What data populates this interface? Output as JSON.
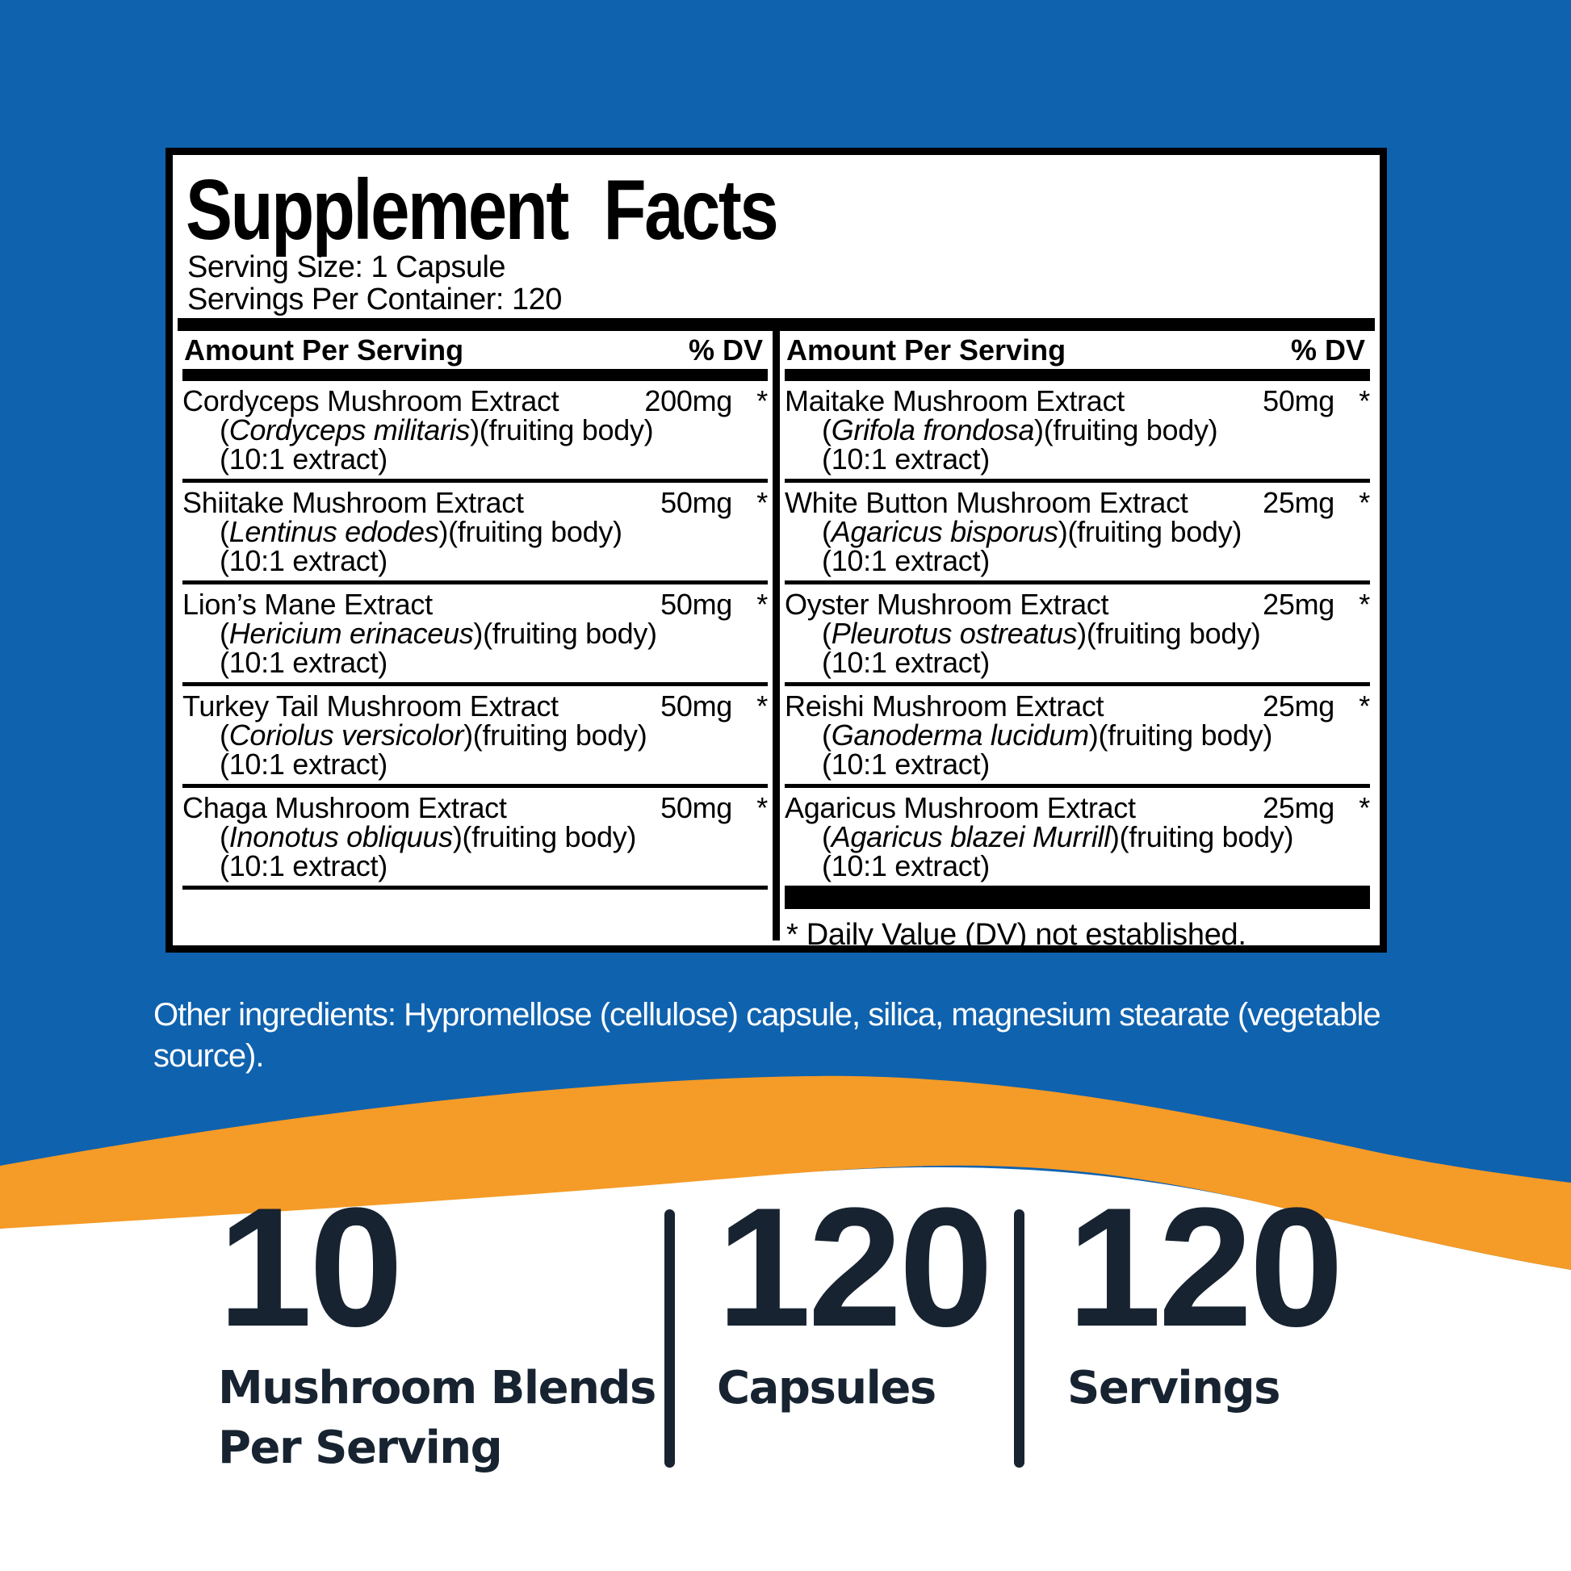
{
  "colors": {
    "background_blue": "#0f62ae",
    "swoosh_orange": "#f59b27",
    "bottom_white": "#ffffff",
    "stats_navy": "#172330",
    "panel_black": "#000000"
  },
  "panel": {
    "title": "Supplement Facts",
    "serving_size": "Serving Size: 1 Capsule",
    "servings_per_container": "Servings Per Container: 120",
    "column_header": {
      "amount": "Amount Per Serving",
      "dv": "% DV"
    },
    "columns": [
      {
        "rows": [
          {
            "name": "Cordyceps Mushroom Extract",
            "amount": "200mg",
            "dv": "*",
            "latin": "Cordyceps militaris",
            "latin_suffix": ")(fruiting body)",
            "extract": "(10:1 extract)"
          },
          {
            "name": "Shiitake Mushroom Extract",
            "amount": "50mg",
            "dv": "*",
            "latin": "Lentinus edodes",
            "latin_suffix": ")(fruiting body)",
            "extract": "(10:1 extract)"
          },
          {
            "name": "Lion’s Mane Extract",
            "amount": "50mg",
            "dv": "*",
            "latin": "Hericium erinaceus",
            "latin_suffix": ")(fruiting body)",
            "extract": "(10:1 extract)"
          },
          {
            "name": "Turkey Tail Mushroom Extract",
            "amount": "50mg",
            "dv": "*",
            "latin": "Coriolus versicolor",
            "latin_suffix": ")(fruiting body)",
            "extract": "(10:1 extract)"
          },
          {
            "name": "Chaga Mushroom Extract",
            "amount": "50mg",
            "dv": "*",
            "latin": "Inonotus obliquus",
            "latin_suffix": ")(fruiting body)",
            "extract": "(10:1 extract)"
          }
        ]
      },
      {
        "rows": [
          {
            "name": "Maitake Mushroom Extract",
            "amount": "50mg",
            "dv": "*",
            "latin": "Grifola frondosa",
            "latin_suffix": ")(fruiting body)",
            "extract": "(10:1 extract)"
          },
          {
            "name": "White Button Mushroom Extract",
            "amount": "25mg",
            "dv": "*",
            "latin": "Agaricus bisporus",
            "latin_suffix": ")(fruiting body)",
            "extract": "(10:1 extract)"
          },
          {
            "name": "Oyster Mushroom Extract",
            "amount": "25mg",
            "dv": "*",
            "latin": "Pleurotus ostreatus",
            "latin_suffix": ")(fruiting body)",
            "extract": "(10:1 extract)"
          },
          {
            "name": "Reishi Mushroom Extract",
            "amount": "25mg",
            "dv": "*",
            "latin": "Ganoderma lucidum",
            "latin_suffix": ")(fruiting body)",
            "extract": "(10:1 extract)"
          },
          {
            "name": "Agaricus Mushroom Extract",
            "amount": "25mg",
            "dv": "*",
            "latin": "Agaricus blazei Murrill",
            "latin_suffix": ")(fruiting body)",
            "extract": "(10:1 extract)"
          }
        ],
        "footnote": "* Daily Value (DV) not established."
      }
    ]
  },
  "other_ingredients": "Other ingredients: Hypromellose (cellulose) capsule, silica, magnesium stearate (vegetable source).",
  "stats": [
    {
      "value": "10",
      "label_lines": [
        "Mushroom Blends",
        "Per Serving"
      ]
    },
    {
      "value": "120",
      "label_lines": [
        "Capsules"
      ]
    },
    {
      "value": "120",
      "label_lines": [
        "Servings"
      ]
    }
  ]
}
